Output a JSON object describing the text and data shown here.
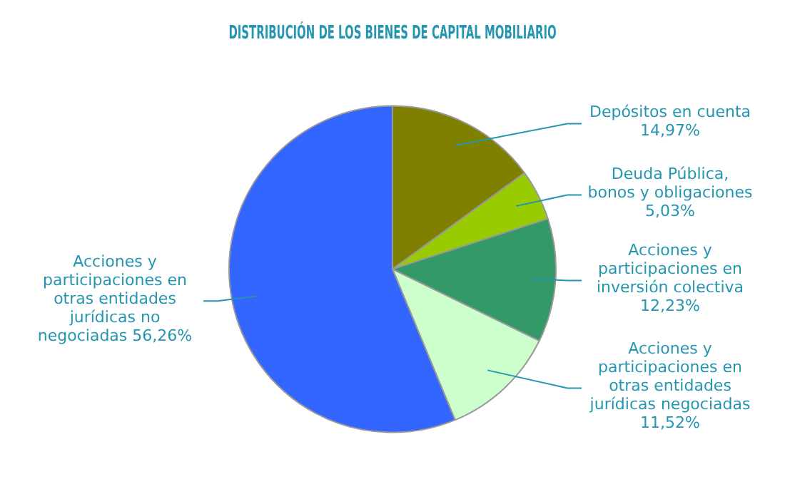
{
  "chart_data": {
    "type": "pie",
    "title": "DISTRIBUCIÓN DE LOS BIENES DE CAPITAL MOBILIARIO",
    "categories": [
      "Depósitos en cuenta",
      "Deuda Pública, bonos y obligaciones",
      "Acciones y participaciones en inversión colectiva",
      "Acciones y participaciones en otras entidades jurídicas negociadas",
      "Acciones y participaciones en otras entidades jurídicas no negociadas"
    ],
    "values": [
      14.97,
      5.03,
      12.23,
      11.52,
      56.26
    ],
    "value_labels": [
      "14,97%",
      "5,03%",
      "12,23%",
      "11,52%",
      "56,26%"
    ],
    "colors": [
      "#808000",
      "#99cc00",
      "#339966",
      "#ccffcc",
      "#3366ff"
    ],
    "legend": false
  }
}
